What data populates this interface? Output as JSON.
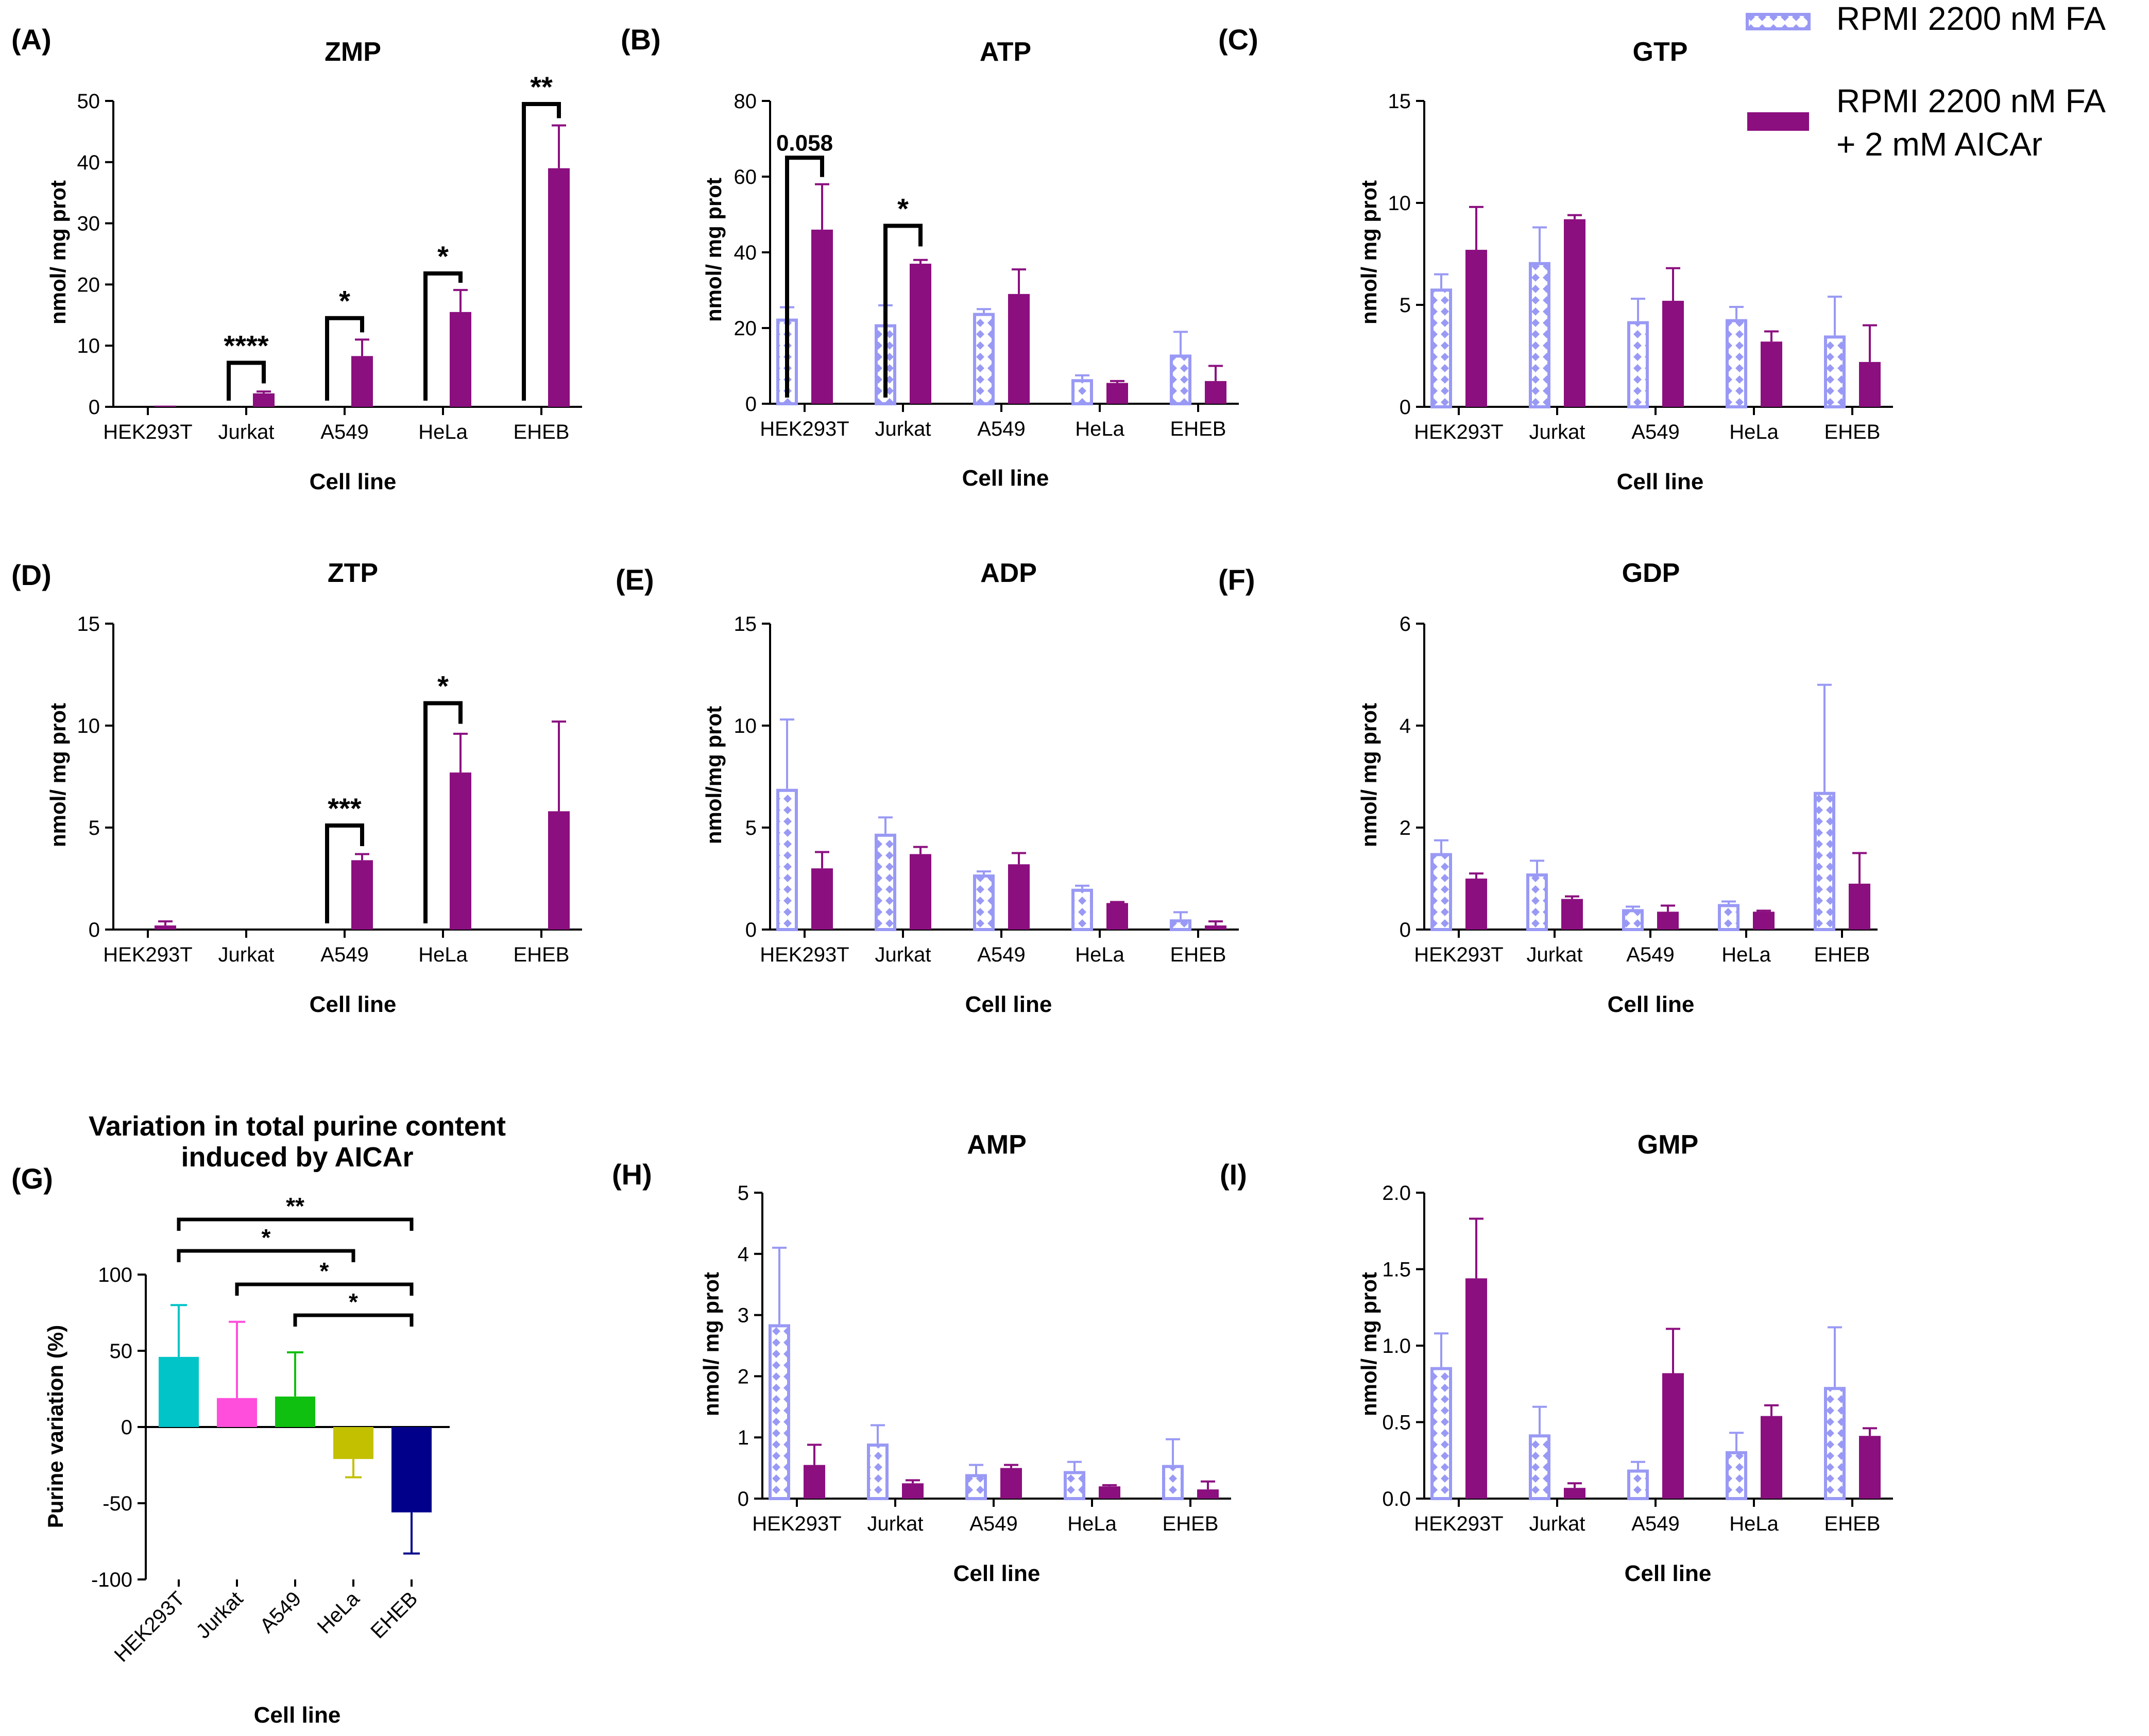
{
  "legend": {
    "series1": "RPMI 2200 nM FA",
    "series2_line1": "RPMI 2200 nM FA",
    "series2_line2": "+ 2 mM AICAr"
  },
  "colors": {
    "series1": "#9999f5",
    "series2": "#8b0f7f",
    "G": [
      "#00c4c8",
      "#ff4edb",
      "#10c010",
      "#c3c000",
      "#00008b"
    ]
  },
  "chart_data": [
    {
      "id": "A",
      "panel": "(A)",
      "type": "bar",
      "title": "ZMP",
      "ylabel": "nmol/ mg prot",
      "xlabel": "Cell line",
      "categories": [
        "HEK293T",
        "Jurkat",
        "A549",
        "HeLa",
        "EHEB"
      ],
      "ylim": [
        0,
        50
      ],
      "yticks": [
        "0",
        "10",
        "20",
        "30",
        "40",
        "50"
      ],
      "series": [
        {
          "name": "RPMI 2200 nM FA",
          "values": [
            0.2,
            0.2,
            0.2,
            0.2,
            0.2
          ],
          "errors": [
            0,
            0,
            0,
            0,
            0
          ]
        },
        {
          "name": "RPMI 2200 nM FA + 2 mM AICAr",
          "values": [
            0.2,
            2.2,
            8.3,
            15.5,
            39.0
          ],
          "errors": [
            0,
            0.3,
            2.7,
            3.6,
            7.0
          ]
        }
      ],
      "annotations": [
        {
          "category": 1,
          "label": "****",
          "top": 7.2
        },
        {
          "category": 2,
          "label": "*",
          "top": 14.5
        },
        {
          "category": 3,
          "label": "*",
          "top": 21.8
        },
        {
          "category": 4,
          "label": "**",
          "top": 49.5
        }
      ]
    },
    {
      "id": "B",
      "panel": "(B)",
      "type": "bar",
      "title": "ATP",
      "ylabel": "nmol/ mg prot",
      "xlabel": "Cell line",
      "categories": [
        "HEK293T",
        "Jurkat",
        "A549",
        "HeLa",
        "EHEB"
      ],
      "ylim": [
        0,
        80
      ],
      "yticks": [
        "0",
        "20",
        "40",
        "60",
        "80"
      ],
      "series": [
        {
          "name": "RPMI 2200 nM FA",
          "values": [
            22.5,
            21.0,
            24.0,
            6.5,
            13.0
          ],
          "errors": [
            3.0,
            5.0,
            1.0,
            1.0,
            6.0
          ]
        },
        {
          "name": "RPMI 2200 nM FA + 2 mM AICAr",
          "values": [
            46.0,
            37.0,
            29.0,
            5.5,
            6.0
          ],
          "errors": [
            12.0,
            1.0,
            6.5,
            0.5,
            4.0
          ]
        }
      ],
      "annotations": [
        {
          "category": 0,
          "label": "0.058",
          "top": 65.0
        },
        {
          "category": 1,
          "label": "*",
          "top": 47.0
        }
      ]
    },
    {
      "id": "C",
      "panel": "(C)",
      "type": "bar",
      "title": "GTP",
      "ylabel": "nmol/ mg prot",
      "xlabel": "Cell line",
      "categories": [
        "HEK293T",
        "Jurkat",
        "A549",
        "HeLa",
        "EHEB"
      ],
      "ylim": [
        0,
        15
      ],
      "yticks": [
        "0",
        "5",
        "10",
        "15"
      ],
      "series": [
        {
          "name": "RPMI 2200 nM FA",
          "values": [
            5.8,
            7.1,
            4.2,
            4.3,
            3.5
          ],
          "errors": [
            0.7,
            1.7,
            1.1,
            0.6,
            1.9
          ]
        },
        {
          "name": "RPMI 2200 nM FA + 2 mM AICAr",
          "values": [
            7.7,
            9.2,
            5.2,
            3.2,
            2.2
          ],
          "errors": [
            2.1,
            0.2,
            1.6,
            0.5,
            1.8
          ]
        }
      ],
      "annotations": []
    },
    {
      "id": "D",
      "panel": "(D)",
      "type": "bar",
      "title": "ZTP",
      "ylabel": "nmol/ mg prot",
      "xlabel": "Cell line",
      "categories": [
        "HEK293T",
        "Jurkat",
        "A549",
        "HeLa",
        "EHEB"
      ],
      "ylim": [
        0,
        15
      ],
      "yticks": [
        "0",
        "5",
        "10",
        "15"
      ],
      "series": [
        {
          "name": "RPMI 2200 nM FA",
          "values": [
            0,
            0,
            0,
            0,
            0
          ],
          "errors": [
            0,
            0,
            0,
            0,
            0
          ]
        },
        {
          "name": "RPMI 2200 nM FA + 2 mM AICAr",
          "values": [
            0.2,
            0,
            3.4,
            7.7,
            5.8
          ],
          "errors": [
            0.2,
            0,
            0.3,
            1.9,
            4.4
          ]
        }
      ],
      "annotations": [
        {
          "category": 2,
          "label": "***",
          "top": 5.1
        },
        {
          "category": 3,
          "label": "*",
          "top": 11.1
        }
      ]
    },
    {
      "id": "E",
      "panel": "(E)",
      "type": "bar",
      "title": "ADP",
      "ylabel": "nmol/mg prot",
      "xlabel": "Cell line",
      "categories": [
        "HEK293T",
        "Jurkat",
        "A549",
        "HeLa",
        "EHEB"
      ],
      "ylim": [
        0,
        15
      ],
      "yticks": [
        "0",
        "5",
        "10",
        "15"
      ],
      "series": [
        {
          "name": "RPMI 2200 nM FA",
          "values": [
            6.9,
            4.7,
            2.7,
            2.0,
            0.5
          ],
          "errors": [
            3.4,
            0.8,
            0.15,
            0.15,
            0.35
          ]
        },
        {
          "name": "RPMI 2200 nM FA + 2 mM AICAr",
          "values": [
            3.0,
            3.7,
            3.2,
            1.3,
            0.2
          ],
          "errors": [
            0.8,
            0.35,
            0.55,
            0.05,
            0.2
          ]
        }
      ],
      "annotations": []
    },
    {
      "id": "F",
      "panel": "(F)",
      "type": "bar",
      "title": "GDP",
      "ylabel": "nmol/ mg prot",
      "xlabel": "Cell line",
      "categories": [
        "HEK293T",
        "Jurkat",
        "A549",
        "HeLa",
        "EHEB"
      ],
      "ylim": [
        0,
        6
      ],
      "yticks": [
        "0",
        "2",
        "4",
        "6"
      ],
      "series": [
        {
          "name": "RPMI 2200 nM FA",
          "values": [
            1.5,
            1.1,
            0.4,
            0.5,
            2.7
          ],
          "errors": [
            0.25,
            0.25,
            0.05,
            0.05,
            2.1
          ]
        },
        {
          "name": "RPMI 2200 nM FA + 2 mM AICAr",
          "values": [
            1.0,
            0.6,
            0.35,
            0.35,
            0.9
          ],
          "errors": [
            0.1,
            0.05,
            0.12,
            0.02,
            0.6
          ]
        }
      ],
      "annotations": []
    },
    {
      "id": "H",
      "panel": "(H)",
      "type": "bar",
      "title": "AMP",
      "ylabel": "nmol/ mg prot",
      "xlabel": "Cell line",
      "categories": [
        "HEK293T",
        "Jurkat",
        "A549",
        "HeLa",
        "EHEB"
      ],
      "ylim": [
        0,
        5
      ],
      "yticks": [
        "0",
        "1",
        "2",
        "3",
        "4",
        "5"
      ],
      "series": [
        {
          "name": "RPMI 2200 nM FA",
          "values": [
            2.85,
            0.9,
            0.4,
            0.45,
            0.55
          ],
          "errors": [
            1.25,
            0.3,
            0.15,
            0.15,
            0.42
          ]
        },
        {
          "name": "RPMI 2200 nM FA + 2 mM AICAr",
          "values": [
            0.55,
            0.25,
            0.5,
            0.2,
            0.15
          ],
          "errors": [
            0.33,
            0.05,
            0.05,
            0.02,
            0.13
          ]
        }
      ],
      "annotations": []
    },
    {
      "id": "I",
      "panel": "(I)",
      "type": "bar",
      "title": "GMP",
      "ylabel": "nmol/ mg prot",
      "xlabel": "Cell line",
      "categories": [
        "HEK293T",
        "Jurkat",
        "A549",
        "HeLa",
        "EHEB"
      ],
      "ylim": [
        0,
        2.0
      ],
      "yticks": [
        "0.0",
        "0.5",
        "1.0",
        "1.5",
        "2.0"
      ],
      "series": [
        {
          "name": "RPMI 2200 nM FA",
          "values": [
            0.86,
            0.42,
            0.19,
            0.31,
            0.73
          ],
          "errors": [
            0.22,
            0.18,
            0.05,
            0.12,
            0.39
          ]
        },
        {
          "name": "RPMI 2200 nM FA + 2 mM AICAr",
          "values": [
            1.44,
            0.07,
            0.82,
            0.54,
            0.41
          ],
          "errors": [
            0.39,
            0.03,
            0.29,
            0.07,
            0.05
          ]
        }
      ],
      "annotations": []
    },
    {
      "id": "G",
      "panel": "(G)",
      "type": "bar",
      "title_line1": "Variation in total purine content",
      "title_line2": "induced by AICAr",
      "ylabel": "Purine variation (%)",
      "xlabel": "Cell line",
      "categories": [
        "HEK293T",
        "Jurkat",
        "A549",
        "HeLa",
        "EHEB"
      ],
      "ylim": [
        -100,
        100
      ],
      "yticks": [
        "-100",
        "-50",
        "0",
        "50",
        "100"
      ],
      "values": [
        46,
        19,
        20,
        -21,
        -56
      ],
      "errors": [
        34,
        50,
        29,
        12,
        27
      ],
      "comparisons": [
        {
          "from": 0,
          "to": 4,
          "label": "**"
        },
        {
          "from": 0,
          "to": 3,
          "label": "*"
        },
        {
          "from": 1,
          "to": 4,
          "label": "*"
        },
        {
          "from": 2,
          "to": 4,
          "label": "*"
        }
      ]
    }
  ]
}
